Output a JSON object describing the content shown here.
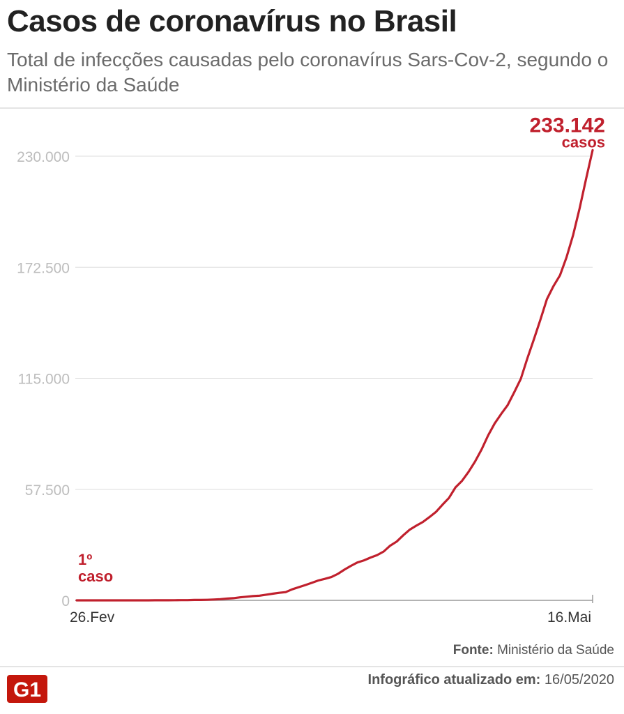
{
  "header": {
    "title": "Casos de coronavírus no Brasil",
    "subtitle": "Total de infecções causadas pelo coronavírus Sars-Cov-2, segundo o Ministério da Saúde"
  },
  "chart_data": {
    "type": "line",
    "ylim": [
      0,
      230000
    ],
    "yticks": [
      0,
      57500,
      115000,
      172500,
      230000
    ],
    "ytick_labels": [
      "0",
      "57.500",
      "115.000",
      "172.500",
      "230.000"
    ],
    "xtick_labels": [
      "26.Fev",
      "16.Mai"
    ],
    "grid": true,
    "line_color": "#c0202d",
    "series": [
      {
        "values": [
          1,
          1,
          1,
          1,
          2,
          2,
          2,
          2,
          3,
          4,
          8,
          13,
          25,
          34,
          52,
          77,
          98,
          121,
          200,
          234,
          291,
          428,
          621,
          904,
          1128,
          1546,
          1891,
          2201,
          2433,
          2915,
          3417,
          3904,
          4256,
          5717,
          6836,
          7910,
          9056,
          10278,
          11130,
          12056,
          13717,
          15927,
          17857,
          19638,
          20727,
          22169,
          23430,
          25262,
          28320,
          30425,
          33682,
          36599,
          38654,
          40581,
          43079,
          45757,
          49492,
          52995,
          58509,
          61888,
          66501,
          71886,
          78162,
          85380,
          91589,
          96559,
          101147,
          107780,
          114715,
          125218,
          135106,
          145328,
          155939,
          162699,
          168331,
          177589,
          188974,
          202918,
          218223,
          233142
        ]
      }
    ],
    "annotations": {
      "end_value": "233.142",
      "end_unit": "casos",
      "start_line1": "1º",
      "start_line2": "caso"
    }
  },
  "footer": {
    "source_label": "Fonte:",
    "source_value": "Ministério da Saúde",
    "logo_text": "G1",
    "updated_label": "Infográfico atualizado em:",
    "updated_value": "16/05/2020"
  }
}
